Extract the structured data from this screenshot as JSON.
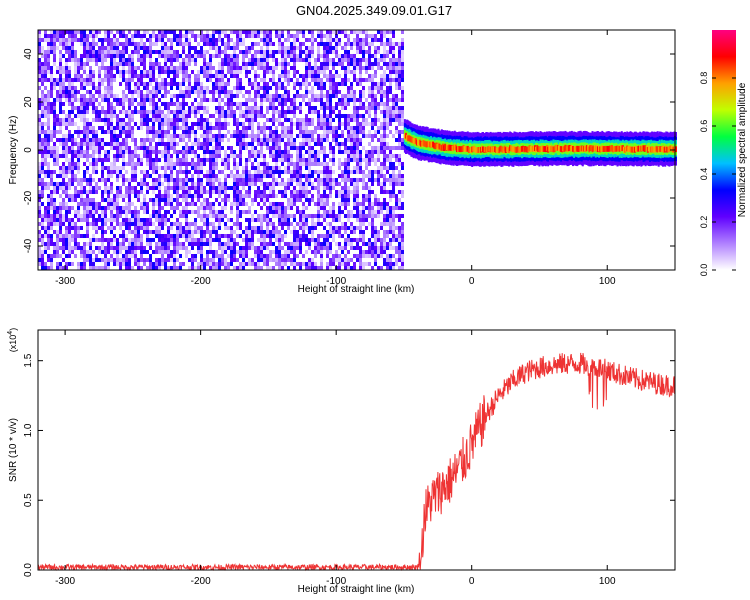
{
  "title": "GN04.2025.349.09.01.G17",
  "chart_data": [
    {
      "type": "heatmap",
      "xlabel": "Height of straight line (km)",
      "ylabel": "Frequency (Hz)",
      "xlim": [
        -320,
        150
      ],
      "ylim": [
        -50,
        50
      ],
      "x_ticks": [
        -300,
        -200,
        -100,
        0,
        100
      ],
      "x_tick_labels": [
        "-300",
        "-200",
        "-100",
        "0",
        "100"
      ],
      "y_ticks": [
        -40,
        -20,
        0,
        20,
        40
      ],
      "y_tick_labels": [
        "-40",
        "-20",
        "0",
        "20",
        "40"
      ],
      "noise_region": {
        "x_from": -320,
        "x_to": -50,
        "y_from": -50,
        "y_to": 50,
        "amplitude_range": [
          0.0,
          0.3
        ]
      },
      "signal_track": {
        "x": [
          -50,
          -47,
          -44,
          -40,
          -35,
          -30,
          -25,
          -20,
          -10,
          0,
          20,
          50,
          80,
          110,
          150
        ],
        "frequency": [
          6,
          5,
          4,
          3,
          2.5,
          2,
          1.5,
          1,
          0.6,
          0.3,
          0.3,
          0.5,
          0.6,
          0.5,
          0.4
        ],
        "peak_amplitude": 0.9
      },
      "colorbar": {
        "label": "Normalized spectral amplitude",
        "ticks": [
          0.0,
          0.2,
          0.4,
          0.6,
          0.8
        ],
        "tick_labels": [
          "0.0",
          "0.2",
          "0.4",
          "0.6",
          "0.8"
        ],
        "range": [
          0,
          1
        ],
        "colormap": [
          "#ffffff",
          "#b080ff",
          "#6000ff",
          "#0000ff",
          "#00c0ff",
          "#00ff40",
          "#c0ff00",
          "#ffa000",
          "#ff0000",
          "#ff0080"
        ]
      },
      "grid": false
    },
    {
      "type": "line",
      "xlabel": "Height of straight line (km)",
      "ylabel": "SNR (10 * v/v)",
      "scale_label": "(x10^4)",
      "scale_base": "x10",
      "scale_exponent": "4",
      "xlim": [
        -320,
        150
      ],
      "ylim": [
        0,
        1.72
      ],
      "x_ticks": [
        -300,
        -200,
        -100,
        0,
        100
      ],
      "x_tick_labels": [
        "-300",
        "-200",
        "-100",
        "0",
        "100"
      ],
      "y_ticks": [
        0.0,
        0.5,
        1.0,
        1.5
      ],
      "y_tick_labels": [
        "0.0",
        "0.5",
        "1.0",
        "1.5"
      ],
      "series": [
        {
          "color": "#ee3333",
          "x": [
            -320,
            -250,
            -200,
            -150,
            -100,
            -50,
            -40,
            -37,
            -35,
            -30,
            -25,
            -20,
            -15,
            -10,
            -5,
            0,
            5,
            10,
            20,
            30,
            40,
            50,
            60,
            70,
            80,
            90,
            100,
            110,
            120,
            130,
            140,
            150
          ],
          "y": [
            0.02,
            0.02,
            0.02,
            0.02,
            0.02,
            0.02,
            0.02,
            0.1,
            0.4,
            0.5,
            0.55,
            0.6,
            0.65,
            0.72,
            0.8,
            0.9,
            1.0,
            1.1,
            1.25,
            1.35,
            1.42,
            1.45,
            1.47,
            1.48,
            1.48,
            1.46,
            1.43,
            1.4,
            1.37,
            1.35,
            1.33,
            1.32
          ],
          "noise_amplitude": 0.08
        }
      ],
      "grid": false
    }
  ]
}
